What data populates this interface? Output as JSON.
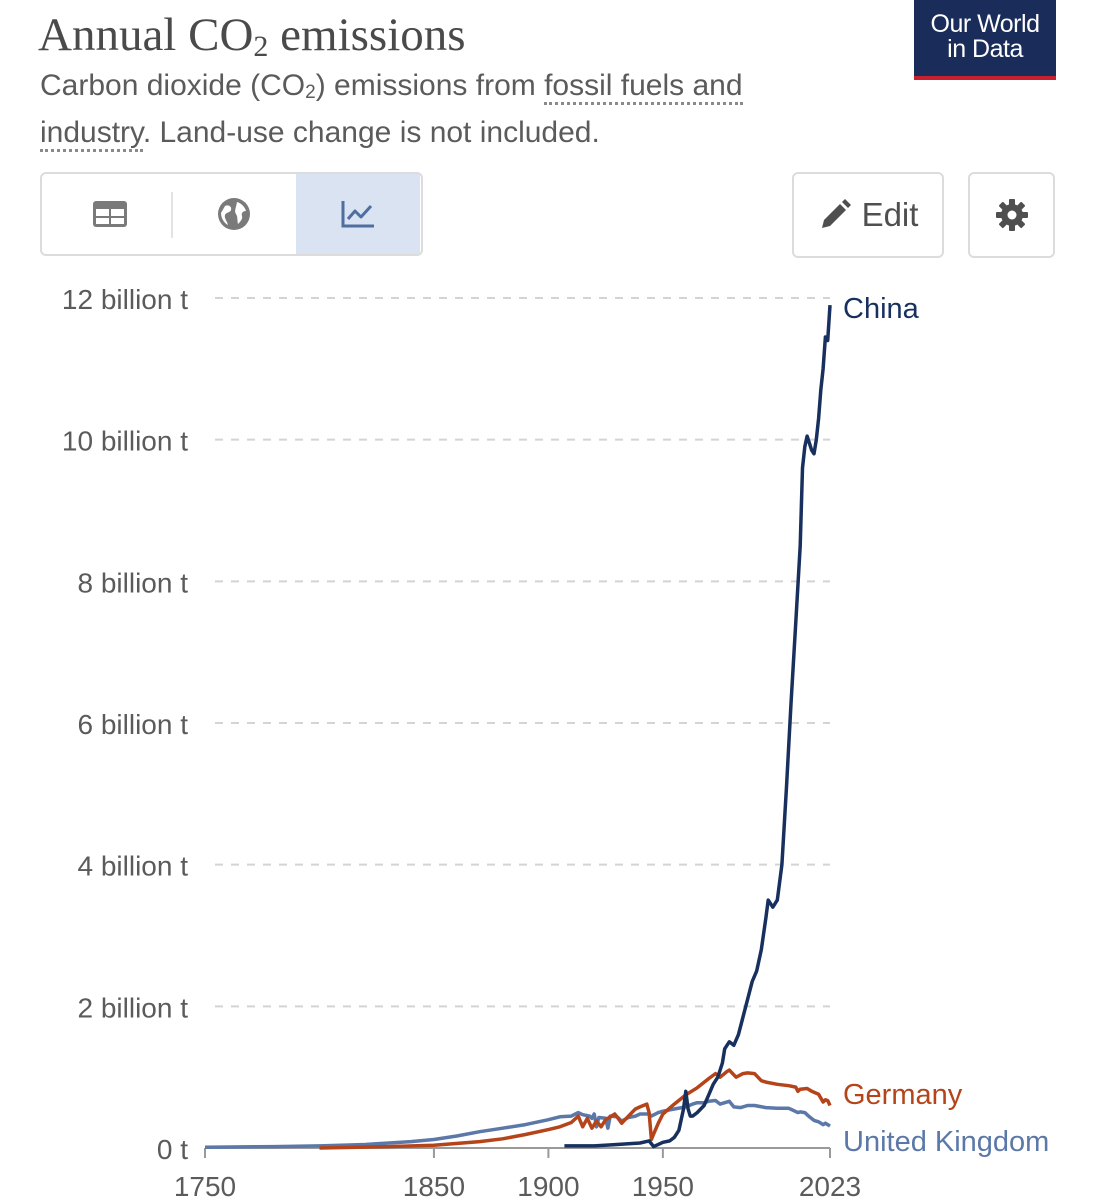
{
  "header": {
    "title_main": "Annual CO",
    "title_sub": "2",
    "title_end": " emissions",
    "subtitle_pre": "Carbon dioxide (CO",
    "subtitle_sub": "2",
    "subtitle_mid": ") emissions from ",
    "subtitle_link": "fossil fuels and industry",
    "subtitle_end": ". Land-use change is not included."
  },
  "logo": {
    "line1": "Our World",
    "line2": "in Data"
  },
  "toolbar": {
    "tabs": [
      {
        "icon": "table-icon",
        "active": false
      },
      {
        "icon": "globe-icon",
        "active": false
      },
      {
        "icon": "line-chart-icon",
        "active": true
      }
    ],
    "edit_label": "Edit",
    "edit_icon": "pencil-icon",
    "settings_icon": "gear-icon"
  },
  "colors": {
    "china": "#18305e",
    "germany": "#b5441a",
    "uk": "#5b78a8",
    "accent_active_tab": "#d9e3f1",
    "logo_bg": "#1a2d5a",
    "logo_bar": "#c8202f"
  },
  "chart_data": {
    "type": "line",
    "title": "Annual CO₂ emissions",
    "xlim": [
      1750,
      2023
    ],
    "ylim": [
      0,
      12
    ],
    "grid": "horizontal dashed",
    "legend_placement": "line-end labels",
    "x_ticks": [
      "1750",
      "1850",
      "1900",
      "1950",
      "2023"
    ],
    "x_tick_values": [
      1750,
      1850,
      1900,
      1950,
      2023
    ],
    "y_ticks": [
      "0 t",
      "2 billion t",
      "4 billion t",
      "6 billion t",
      "8 billion t",
      "10 billion t",
      "12 billion t"
    ],
    "y_tick_values": [
      0,
      2,
      4,
      6,
      8,
      10,
      12
    ],
    "series": [
      {
        "name": "China",
        "color_key": "china",
        "points": [
          [
            1907,
            0.03
          ],
          [
            1920,
            0.03
          ],
          [
            1930,
            0.05
          ],
          [
            1940,
            0.07
          ],
          [
            1944,
            0.1
          ],
          [
            1946,
            0.02
          ],
          [
            1950,
            0.08
          ],
          [
            1953,
            0.1
          ],
          [
            1955,
            0.15
          ],
          [
            1957,
            0.25
          ],
          [
            1959,
            0.55
          ],
          [
            1960,
            0.8
          ],
          [
            1961,
            0.55
          ],
          [
            1962,
            0.45
          ],
          [
            1963,
            0.45
          ],
          [
            1965,
            0.5
          ],
          [
            1968,
            0.6
          ],
          [
            1970,
            0.75
          ],
          [
            1972,
            0.9
          ],
          [
            1974,
            1.0
          ],
          [
            1976,
            1.2
          ],
          [
            1977,
            1.4
          ],
          [
            1979,
            1.5
          ],
          [
            1981,
            1.45
          ],
          [
            1983,
            1.6
          ],
          [
            1985,
            1.85
          ],
          [
            1987,
            2.1
          ],
          [
            1989,
            2.35
          ],
          [
            1991,
            2.5
          ],
          [
            1993,
            2.8
          ],
          [
            1995,
            3.25
          ],
          [
            1996,
            3.5
          ],
          [
            1997,
            3.45
          ],
          [
            1998,
            3.4
          ],
          [
            1999,
            3.45
          ],
          [
            2000,
            3.5
          ],
          [
            2002,
            4.0
          ],
          [
            2004,
            5.1
          ],
          [
            2006,
            6.3
          ],
          [
            2008,
            7.4
          ],
          [
            2010,
            8.5
          ],
          [
            2011,
            9.6
          ],
          [
            2012,
            9.9
          ],
          [
            2013,
            10.05
          ],
          [
            2014,
            9.95
          ],
          [
            2015,
            9.85
          ],
          [
            2016,
            9.8
          ],
          [
            2017,
            10.0
          ],
          [
            2018,
            10.3
          ],
          [
            2019,
            10.7
          ],
          [
            2020,
            11.0
          ],
          [
            2021,
            11.45
          ],
          [
            2022,
            11.4
          ],
          [
            2023,
            11.9
          ]
        ]
      },
      {
        "name": "Germany",
        "color_key": "germany",
        "points": [
          [
            1800,
            0.0
          ],
          [
            1830,
            0.02
          ],
          [
            1850,
            0.04
          ],
          [
            1870,
            0.09
          ],
          [
            1880,
            0.13
          ],
          [
            1890,
            0.19
          ],
          [
            1900,
            0.26
          ],
          [
            1905,
            0.3
          ],
          [
            1910,
            0.36
          ],
          [
            1913,
            0.45
          ],
          [
            1915,
            0.3
          ],
          [
            1917,
            0.42
          ],
          [
            1919,
            0.28
          ],
          [
            1921,
            0.38
          ],
          [
            1923,
            0.3
          ],
          [
            1925,
            0.4
          ],
          [
            1929,
            0.48
          ],
          [
            1932,
            0.35
          ],
          [
            1935,
            0.45
          ],
          [
            1938,
            0.55
          ],
          [
            1940,
            0.58
          ],
          [
            1943,
            0.62
          ],
          [
            1944,
            0.5
          ],
          [
            1945,
            0.12
          ],
          [
            1946,
            0.2
          ],
          [
            1948,
            0.35
          ],
          [
            1950,
            0.48
          ],
          [
            1955,
            0.62
          ],
          [
            1960,
            0.75
          ],
          [
            1965,
            0.85
          ],
          [
            1970,
            0.98
          ],
          [
            1973,
            1.05
          ],
          [
            1975,
            1.0
          ],
          [
            1978,
            1.08
          ],
          [
            1979,
            1.1
          ],
          [
            1982,
            1.0
          ],
          [
            1985,
            1.05
          ],
          [
            1987,
            1.06
          ],
          [
            1990,
            1.05
          ],
          [
            1993,
            0.95
          ],
          [
            1995,
            0.93
          ],
          [
            2000,
            0.9
          ],
          [
            2005,
            0.88
          ],
          [
            2008,
            0.86
          ],
          [
            2009,
            0.8
          ],
          [
            2010,
            0.83
          ],
          [
            2013,
            0.84
          ],
          [
            2015,
            0.8
          ],
          [
            2018,
            0.76
          ],
          [
            2020,
            0.65
          ],
          [
            2021,
            0.68
          ],
          [
            2022,
            0.67
          ],
          [
            2023,
            0.6
          ]
        ]
      },
      {
        "name": "United Kingdom",
        "color_key": "uk",
        "points": [
          [
            1750,
            0.01
          ],
          [
            1780,
            0.02
          ],
          [
            1800,
            0.03
          ],
          [
            1820,
            0.05
          ],
          [
            1840,
            0.09
          ],
          [
            1850,
            0.12
          ],
          [
            1860,
            0.17
          ],
          [
            1870,
            0.23
          ],
          [
            1880,
            0.28
          ],
          [
            1890,
            0.33
          ],
          [
            1900,
            0.4
          ],
          [
            1905,
            0.44
          ],
          [
            1910,
            0.45
          ],
          [
            1913,
            0.5
          ],
          [
            1915,
            0.47
          ],
          [
            1918,
            0.45
          ],
          [
            1919,
            0.42
          ],
          [
            1920,
            0.48
          ],
          [
            1921,
            0.3
          ],
          [
            1922,
            0.43
          ],
          [
            1925,
            0.42
          ],
          [
            1926,
            0.28
          ],
          [
            1927,
            0.45
          ],
          [
            1930,
            0.44
          ],
          [
            1932,
            0.38
          ],
          [
            1935,
            0.43
          ],
          [
            1938,
            0.45
          ],
          [
            1940,
            0.48
          ],
          [
            1944,
            0.48
          ],
          [
            1945,
            0.45
          ],
          [
            1948,
            0.5
          ],
          [
            1950,
            0.52
          ],
          [
            1955,
            0.55
          ],
          [
            1960,
            0.58
          ],
          [
            1963,
            0.62
          ],
          [
            1965,
            0.64
          ],
          [
            1968,
            0.64
          ],
          [
            1970,
            0.66
          ],
          [
            1973,
            0.67
          ],
          [
            1975,
            0.62
          ],
          [
            1979,
            0.66
          ],
          [
            1981,
            0.58
          ],
          [
            1984,
            0.57
          ],
          [
            1987,
            0.6
          ],
          [
            1990,
            0.6
          ],
          [
            1995,
            0.57
          ],
          [
            2000,
            0.56
          ],
          [
            2005,
            0.56
          ],
          [
            2009,
            0.5
          ],
          [
            2010,
            0.51
          ],
          [
            2012,
            0.5
          ],
          [
            2014,
            0.44
          ],
          [
            2016,
            0.39
          ],
          [
            2018,
            0.37
          ],
          [
            2020,
            0.33
          ],
          [
            2021,
            0.35
          ],
          [
            2023,
            0.31
          ]
        ]
      }
    ]
  }
}
